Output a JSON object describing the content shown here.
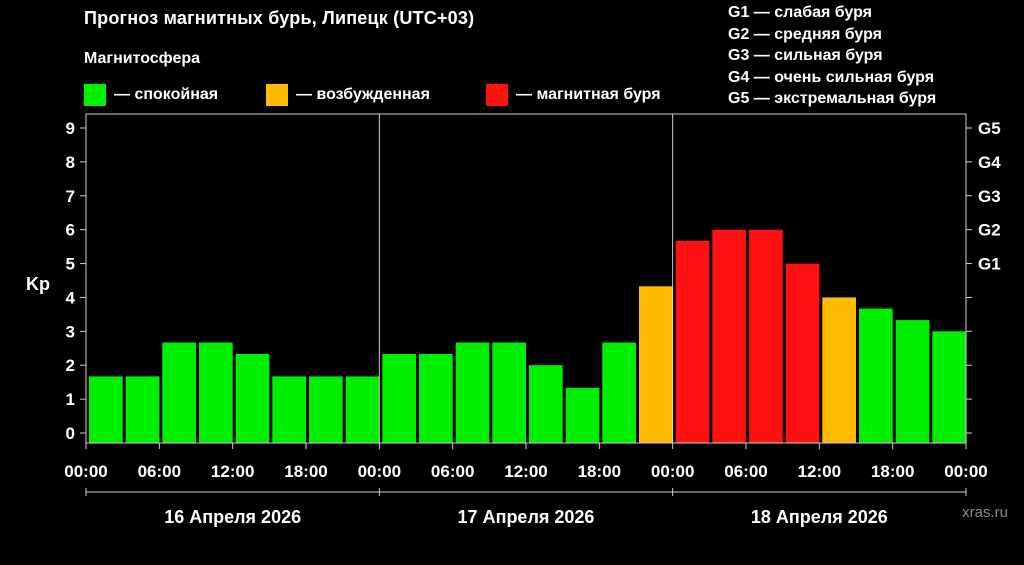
{
  "header": {
    "title": "Прогноз магнитных бурь, Липецк (UTC+03)",
    "legend_title": "Магнитосфера"
  },
  "legend": [
    {
      "label": "— спокойная",
      "color": "#00ee00"
    },
    {
      "label": "— возбужденная",
      "color": "#ffbb00"
    },
    {
      "label": "— магнитная буря",
      "color": "#ff1111"
    }
  ],
  "storm_levels": [
    "G1 — слабая буря",
    "G2 — средняя буря",
    "G3 — сильная буря",
    "G4 — очень сильная буря",
    "G5 — экстремальная буря"
  ],
  "watermark": "xras.ru",
  "chart_data": {
    "type": "bar",
    "ylabel": "Kp",
    "ylim": [
      0,
      9.5
    ],
    "yticks": [
      0,
      1,
      2,
      3,
      4,
      5,
      6,
      7,
      8,
      9
    ],
    "right_ticks": [
      {
        "value": 5,
        "label": "G1"
      },
      {
        "value": 6,
        "label": "G2"
      },
      {
        "value": 7,
        "label": "G3"
      },
      {
        "value": 8,
        "label": "G4"
      },
      {
        "value": 9,
        "label": "G5"
      }
    ],
    "xticks": [
      "00:00",
      "06:00",
      "12:00",
      "18:00",
      "00:00",
      "06:00",
      "12:00",
      "18:00",
      "00:00",
      "06:00",
      "12:00",
      "18:00",
      "00:00"
    ],
    "days": [
      "16 Апреля 2026",
      "17 Апреля 2026",
      "18 Апреля 2026"
    ],
    "bars_per_day": 8,
    "values": [
      1.67,
      1.67,
      2.67,
      2.67,
      2.33,
      1.67,
      1.67,
      1.67,
      2.33,
      2.33,
      2.67,
      2.67,
      2.0,
      1.33,
      2.67,
      4.33,
      5.67,
      6.0,
      6.0,
      5.0,
      4.0,
      3.67,
      3.33,
      3.0
    ],
    "status": [
      "calm",
      "calm",
      "calm",
      "calm",
      "calm",
      "calm",
      "calm",
      "calm",
      "calm",
      "calm",
      "calm",
      "calm",
      "calm",
      "calm",
      "calm",
      "excited",
      "storm",
      "storm",
      "storm",
      "storm",
      "excited",
      "calm",
      "calm",
      "calm"
    ],
    "colors": {
      "calm": "#00ee00",
      "excited": "#ffbb00",
      "storm": "#ff1111"
    }
  }
}
